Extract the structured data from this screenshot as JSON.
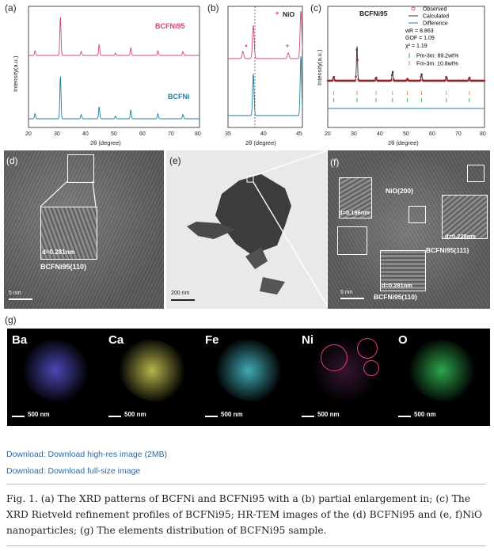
{
  "figure": {
    "panel_labels": [
      "(a)",
      "(b)",
      "(c)",
      "(d)",
      "(e)",
      "(f)",
      "(g)"
    ],
    "panel_a": {
      "ylabel": "Intensity(a.u.)",
      "xlabel": "2θ (degree)",
      "xticks": [
        "20",
        "30",
        "40",
        "50",
        "60",
        "70",
        "80"
      ],
      "series_labels": [
        "BCFNi95",
        "BCFNi"
      ],
      "colors": [
        "#d6456a",
        "#1e7f9e"
      ]
    },
    "panel_b": {
      "ylabel": "Intensity(a.u.)",
      "xlabel": "2θ (degree)",
      "xticks": [
        "35",
        "40",
        "45"
      ],
      "legend_marker": "*",
      "legend_label": "NiO"
    },
    "panel_c": {
      "title": "BCFNi95",
      "ylabel": "Intensity(a.u.)",
      "xlabel": "2θ (degree)",
      "xticks": [
        "20",
        "30",
        "40",
        "50",
        "60",
        "70",
        "80"
      ],
      "legend": [
        "Observed",
        "Calculated",
        "Difference"
      ],
      "stats": [
        "wR  = 8.863",
        "GOF = 1.09",
        "χ² = 1.19"
      ],
      "phases": [
        "Pm-3m: 89.2wt%",
        "Fm-3m: 10.8wt%"
      ]
    },
    "panel_d": {
      "d_spacing": "d=0.281nm",
      "plane": "BCFNi95(110)",
      "scale": "5 nm"
    },
    "panel_e": {
      "scale": "200 nm"
    },
    "panel_f": {
      "labels": [
        "NiO(200)",
        "d=0.196nm",
        "d=0.228nm",
        "BCFNi95(111)",
        "d=0.281nm",
        "BCFNi95(110)"
      ],
      "scale": "5 nm"
    },
    "panel_g": {
      "elements": [
        "Ba",
        "Ca",
        "Fe",
        "Ni",
        "O"
      ],
      "scale": "500 nm",
      "colors": [
        "#5a55d8",
        "#d8d45a",
        "#4cc8d6",
        "#d455c8",
        "#35c25a"
      ]
    }
  },
  "chart_data": [
    {
      "type": "line",
      "title": "",
      "xlabel": "2θ (degree)",
      "ylabel": "Intensity(a.u.)",
      "xlim": [
        20,
        80
      ],
      "series": [
        {
          "name": "BCFNi95",
          "x": [
            22.3,
            31.2,
            38.5,
            44.8,
            50.5,
            55.9,
            65.4,
            74.2
          ],
          "values": [
            12,
            100,
            10,
            28,
            6,
            20,
            12,
            10
          ]
        },
        {
          "name": "BCFNi",
          "x": [
            22.3,
            31.2,
            38.5,
            44.8,
            50.5,
            55.9,
            65.4,
            74.2
          ],
          "values": [
            12,
            100,
            10,
            28,
            6,
            20,
            12,
            10
          ]
        }
      ]
    },
    {
      "type": "line",
      "title": "",
      "xlabel": "2θ (degree)",
      "ylabel": "Intensity(a.u.)",
      "xlim": [
        35,
        45
      ],
      "series": [
        {
          "name": "",
          "x": [
            37.0,
            38.4,
            43.1,
            44.8
          ],
          "values": [
            15,
            70,
            12,
            100
          ]
        },
        {
          "name": "",
          "x": [
            38.4,
            44.8
          ],
          "values": [
            70,
            100
          ]
        }
      ]
    },
    {
      "type": "line",
      "title": "BCFNi95",
      "xlabel": "2θ (degree)",
      "ylabel": "Intensity(a.u.)",
      "xlim": [
        20,
        80
      ],
      "series": [
        {
          "name": "Observed",
          "x": [
            22.3,
            31.2,
            38.5,
            44.8,
            50.5,
            55.9,
            65.4,
            74.2
          ],
          "values": [
            12,
            100,
            10,
            28,
            6,
            20,
            12,
            10
          ]
        },
        {
          "name": "Calculated",
          "x": [
            22.3,
            31.2,
            38.5,
            44.8,
            50.5,
            55.9,
            65.4,
            74.2
          ],
          "values": [
            12,
            100,
            10,
            28,
            6,
            20,
            12,
            10
          ]
        },
        {
          "name": "Difference",
          "x": [
            20,
            80
          ],
          "values": [
            0,
            0
          ]
        }
      ]
    }
  ],
  "links": {
    "download_high_res": "Download: Download high-res image (2MB)",
    "download_full": "Download: Download full-size image"
  },
  "caption": "Fig. 1. (a) The XRD patterns of BCFNi and BCFNi95 with a (b) partial enlargement in; (c) The XRD Rietveld refinement profiles of BCFNi95; HR-TEM images of the (d) BCFNi95 and (e, f)NiO nanoparticles; (g) The elements distribution of BCFNi95 sample."
}
